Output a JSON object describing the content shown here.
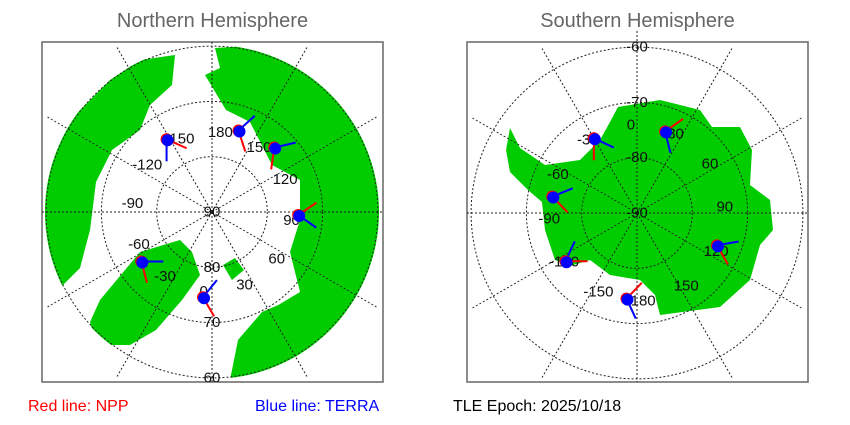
{
  "north": {
    "title": "Northern Hemisphere",
    "lat_labels": [
      "90",
      "80",
      "70",
      "60"
    ],
    "lon_labels": [
      "180",
      "150",
      "120",
      "90",
      "60",
      "30",
      "0",
      "-30",
      "-60",
      "-90",
      "-120",
      "-150"
    ],
    "markers": [
      {
        "lat": 74.5,
        "lon": -148,
        "npp_heading": 24,
        "terra_heading": 90
      },
      {
        "lat": 74.5,
        "lon": 162,
        "npp_heading": 72,
        "terra_heading": -42
      },
      {
        "lat": 73.8,
        "lon": 136,
        "npp_heading": 98,
        "terra_heading": -13
      },
      {
        "lat": 74.4,
        "lon": 88,
        "npp_heading": -34,
        "terra_heading": 35
      },
      {
        "lat": 74.4,
        "lon": -55,
        "npp_heading": 75,
        "terra_heading": 0
      },
      {
        "lat": 74.5,
        "lon": -6,
        "npp_heading": 60,
        "terra_heading": -51
      }
    ]
  },
  "south": {
    "title": "Southern Hemisphere",
    "lat_labels": [
      "-90",
      "-80",
      "-70",
      "-60"
    ],
    "lon_labels": [
      "0",
      "30",
      "60",
      "90",
      "120",
      "150",
      "180",
      "-150",
      "-120",
      "-90",
      "-60",
      "-30"
    ],
    "markers": [
      {
        "lat": -74.4,
        "lon": -30,
        "npp_heading": 90,
        "terra_heading": 25
      },
      {
        "lat": -74.4,
        "lon": 19,
        "npp_heading": -35,
        "terra_heading": 76
      },
      {
        "lat": -74.4,
        "lon": -79,
        "npp_heading": 46,
        "terra_heading": -22
      },
      {
        "lat": -74.4,
        "lon": -124,
        "npp_heading": 0,
        "terra_heading": -65
      },
      {
        "lat": -74.4,
        "lon": -173,
        "npp_heading": -46,
        "terra_heading": 65
      },
      {
        "lat": -74.4,
        "lon": 112,
        "npp_heading": 60,
        "terra_heading": -10
      }
    ]
  },
  "legend": {
    "npp": "Red line: NPP",
    "terra": "Blue line: TERRA",
    "epoch": "TLE Epoch: 2025/10/18"
  },
  "colors": {
    "land": "#00cc00",
    "npp": "#ff0000",
    "terra": "#0000ff",
    "title": "#666666"
  }
}
